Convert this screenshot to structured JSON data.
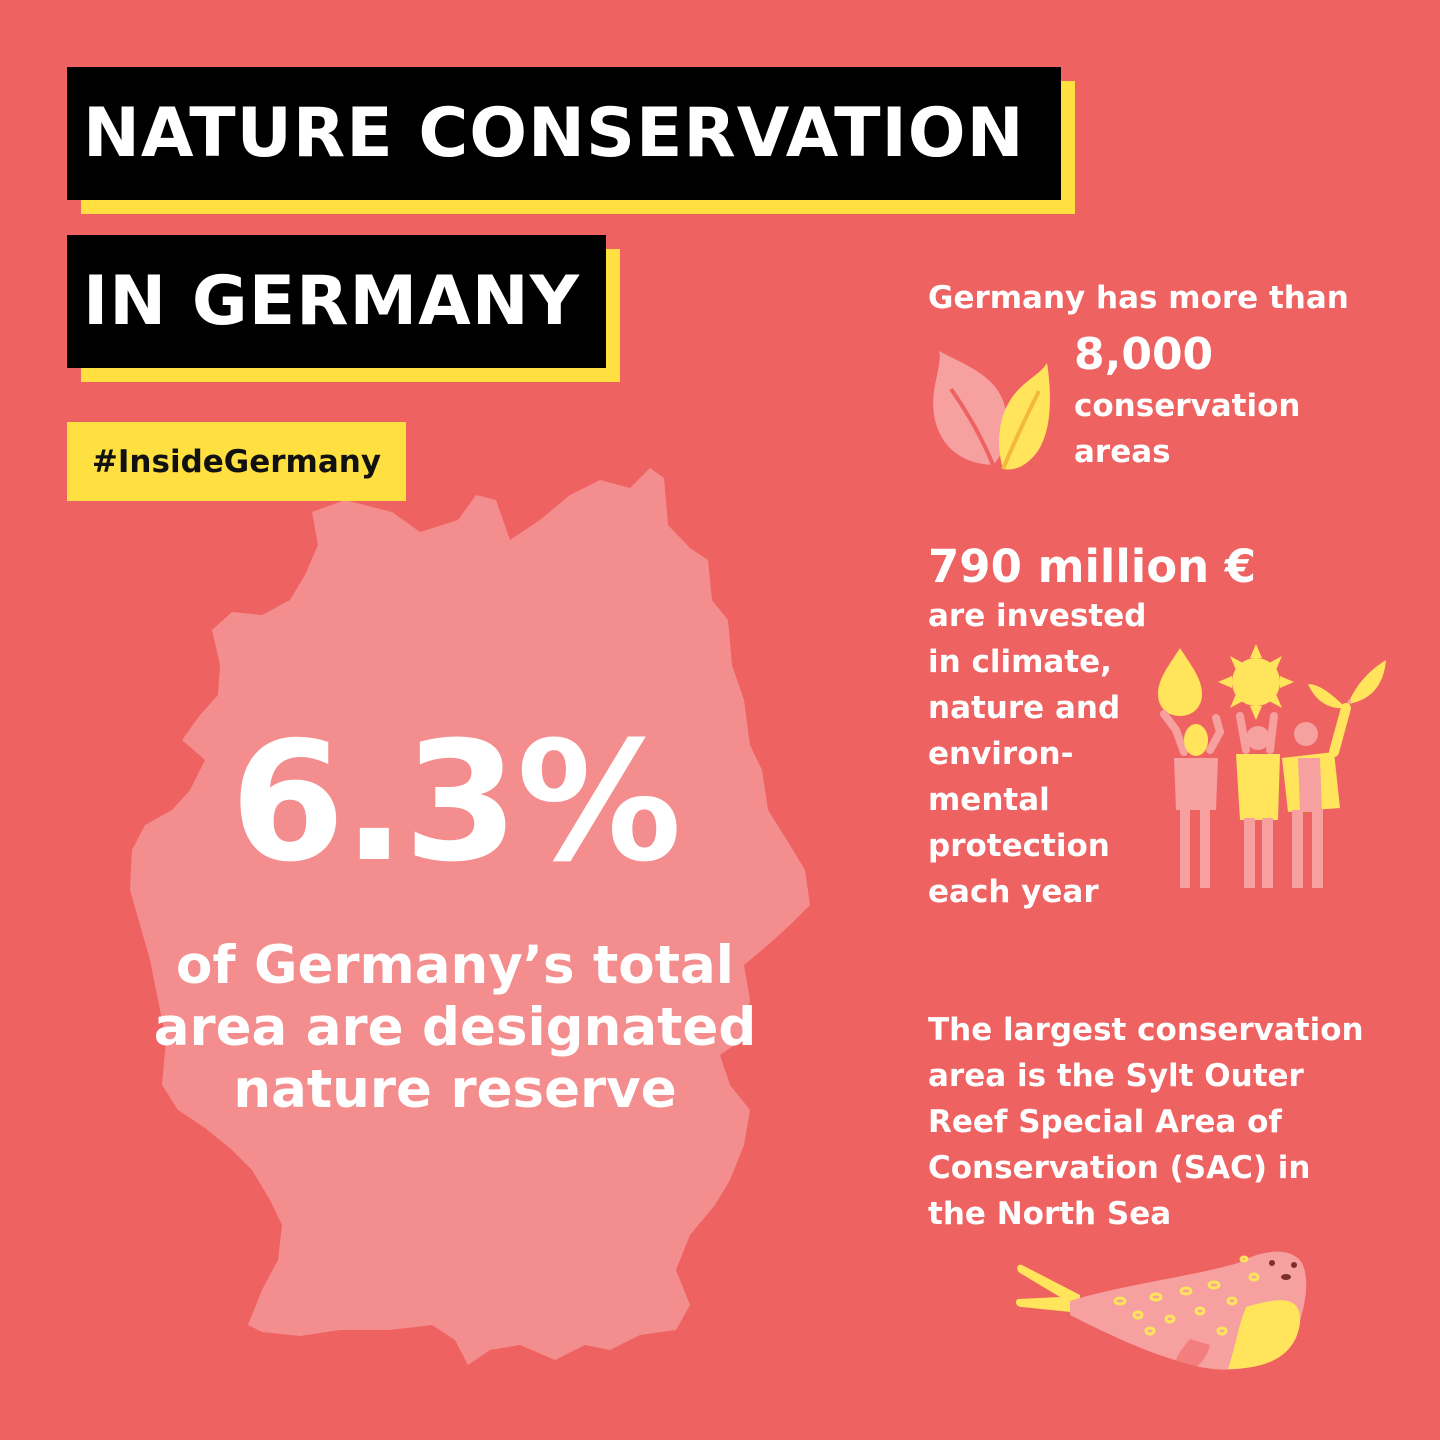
{
  "header": {
    "title_line1": "NATURE CONSERVATION",
    "title_line2": "IN GERMANY",
    "hashtag": "#InsideGermany"
  },
  "main_stat": {
    "value": "6.3%",
    "caption_lines": [
      "of Germany’s total",
      "area are designated",
      "nature reserve"
    ]
  },
  "fact_areas": {
    "intro": "Germany has more than",
    "number": "8,000",
    "label_lines": [
      "conservation",
      "areas"
    ],
    "icon": "leaves-icon"
  },
  "fact_investment": {
    "amount": "790 million €",
    "lines": [
      "are invested",
      "in climate,",
      "nature and",
      "environ-",
      "mental",
      "protection",
      "each year"
    ],
    "icon": "people-holding-water-sun-leaf-illustration"
  },
  "fact_largest": {
    "lines": [
      "The largest conservation",
      "area is the Sylt Outer",
      "Reef Special Area of",
      "Conservation (SAC) in",
      "the North Sea"
    ],
    "icon": "seal-illustration"
  },
  "colors": {
    "background": "#EE6262",
    "map": "#F48D8D",
    "accent_yellow": "#FFE040",
    "title_box": "#000000",
    "text": "#FFFFFF"
  }
}
